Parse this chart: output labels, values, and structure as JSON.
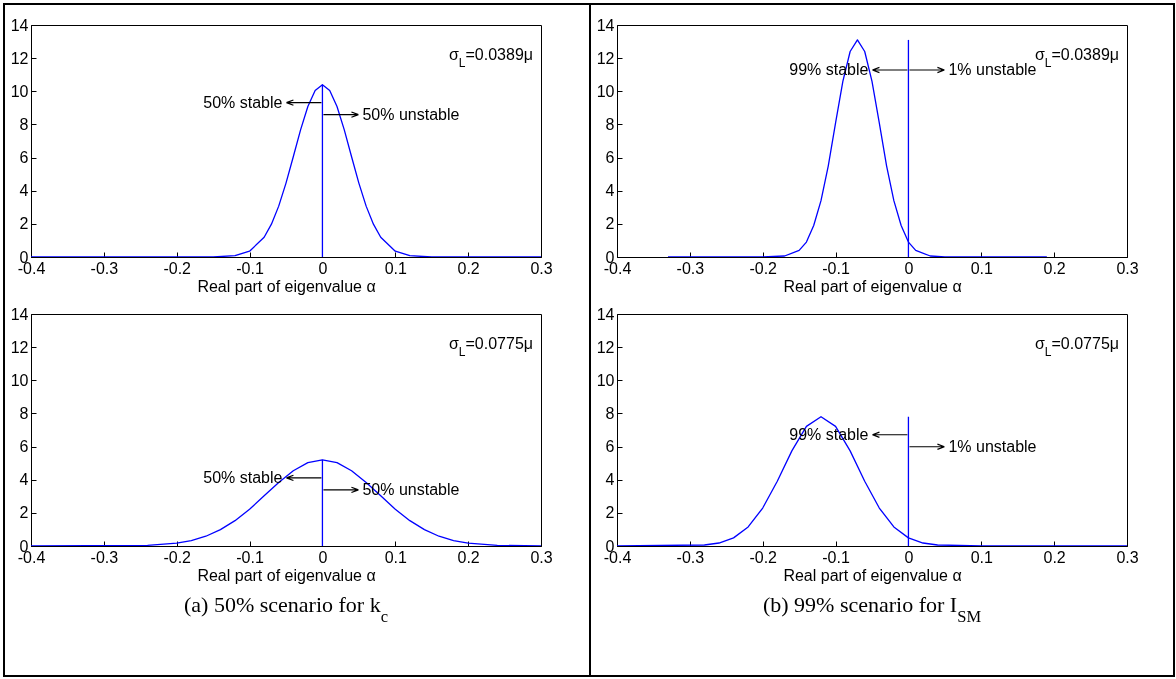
{
  "chart_data": [
    {
      "type": "line",
      "xlabel": "Real part of eigenvalue α",
      "xlim": [
        -0.4,
        0.3
      ],
      "ylim": [
        0,
        14
      ],
      "xticks": [
        -0.4,
        -0.3,
        -0.2,
        -0.1,
        0,
        0.1,
        0.2,
        0.3
      ],
      "yticks": [
        0,
        2,
        4,
        6,
        8,
        10,
        12,
        14
      ],
      "series": [
        {
          "color": "#0000ff",
          "x": [
            -0.4,
            -0.15,
            -0.12,
            -0.1,
            -0.08,
            -0.07,
            -0.06,
            -0.05,
            -0.04,
            -0.03,
            -0.02,
            -0.01,
            0,
            0.01,
            0.02,
            0.03,
            0.04,
            0.05,
            0.06,
            0.07,
            0.08,
            0.1,
            0.12,
            0.15,
            0.3
          ],
          "values": [
            0,
            0,
            0.08,
            0.35,
            1.19,
            1.98,
            3.07,
            4.46,
            6.05,
            7.67,
            9.08,
            10.05,
            10.4,
            10.05,
            9.08,
            7.67,
            6.05,
            4.46,
            3.07,
            1.98,
            1.19,
            0.35,
            0.08,
            0,
            0
          ]
        },
        {
          "color": "#0000ff",
          "x": [
            0,
            0
          ],
          "values": [
            0,
            10.4
          ]
        }
      ],
      "annotations": [
        "σ$_{L}$=0.0389μ",
        "50% stable",
        "50% unstable"
      ]
    },
    {
      "type": "line",
      "xlabel": "Real part of eigenvalue α",
      "xlim": [
        -0.4,
        0.3
      ],
      "ylim": [
        0,
        14
      ],
      "xticks": [
        -0.4,
        -0.3,
        -0.2,
        -0.1,
        0,
        0.1,
        0.2,
        0.3
      ],
      "yticks": [
        0,
        2,
        4,
        6,
        8,
        10,
        12,
        14
      ],
      "series": [
        {
          "color": "#0000ff",
          "x": [
            -0.33,
            -0.2,
            -0.17,
            -0.15,
            -0.14,
            -0.13,
            -0.12,
            -0.11,
            -0.1,
            -0.09,
            -0.08,
            -0.07,
            -0.06,
            -0.05,
            -0.04,
            -0.03,
            -0.02,
            -0.01,
            0,
            0.01,
            0.03,
            0.05,
            0.19
          ],
          "values": [
            0,
            0,
            0.06,
            0.4,
            0.9,
            1.9,
            3.4,
            5.5,
            8.1,
            10.6,
            12.4,
            13.1,
            12.4,
            10.6,
            8.1,
            5.5,
            3.4,
            1.9,
            0.9,
            0.4,
            0.06,
            0,
            0
          ]
        },
        {
          "color": "#0000ff",
          "x": [
            0,
            0
          ],
          "values": [
            0,
            13.1
          ]
        }
      ],
      "annotations": [
        "σ$_{L}$=0.0389μ",
        "99% stable",
        "1% unstable"
      ]
    },
    {
      "type": "line",
      "title": "(a) 50% scenario for k$_{c}$",
      "xlabel": "Real part of eigenvalue α",
      "xlim": [
        -0.4,
        0.3
      ],
      "ylim": [
        0,
        14
      ],
      "xticks": [
        -0.4,
        -0.3,
        -0.2,
        -0.1,
        0,
        0.1,
        0.2,
        0.3
      ],
      "yticks": [
        0,
        2,
        4,
        6,
        8,
        10,
        12,
        14
      ],
      "series": [
        {
          "color": "#0000ff",
          "x": [
            -0.4,
            -0.24,
            -0.2,
            -0.18,
            -0.16,
            -0.14,
            -0.12,
            -0.1,
            -0.08,
            -0.06,
            -0.04,
            -0.02,
            0,
            0.02,
            0.04,
            0.06,
            0.08,
            0.1,
            0.12,
            0.14,
            0.16,
            0.18,
            0.2,
            0.24,
            0.3
          ],
          "values": [
            0,
            0.04,
            0.17,
            0.33,
            0.59,
            0.99,
            1.53,
            2.22,
            3.03,
            3.83,
            4.54,
            5.03,
            5.2,
            5.03,
            4.54,
            3.83,
            3.03,
            2.22,
            1.53,
            0.99,
            0.59,
            0.33,
            0.17,
            0.04,
            0
          ]
        },
        {
          "color": "#0000ff",
          "x": [
            0,
            0
          ],
          "values": [
            0,
            5.2
          ]
        }
      ],
      "annotations": [
        "σ$_{L}$=0.0775μ",
        "50% stable",
        "50% unstable"
      ]
    },
    {
      "type": "line",
      "title": "(b) 99% scenario for I$_{SM}$",
      "xlabel": "Real part of eigenvalue α",
      "xlim": [
        -0.4,
        0.3
      ],
      "ylim": [
        0,
        14
      ],
      "xticks": [
        -0.4,
        -0.3,
        -0.2,
        -0.1,
        0,
        0.1,
        0.2,
        0.3
      ],
      "yticks": [
        0,
        2,
        4,
        6,
        8,
        10,
        12,
        14
      ],
      "series": [
        {
          "color": "#0000ff",
          "x": [
            -0.4,
            -0.28,
            -0.26,
            -0.24,
            -0.22,
            -0.2,
            -0.18,
            -0.16,
            -0.14,
            -0.12,
            -0.1,
            -0.08,
            -0.06,
            -0.04,
            -0.02,
            0,
            0.02,
            0.04,
            0.1,
            0.3
          ],
          "values": [
            0,
            0.06,
            0.18,
            0.49,
            1.15,
            2.29,
            3.91,
            5.74,
            7.22,
            7.8,
            7.22,
            5.74,
            3.91,
            2.29,
            1.15,
            0.49,
            0.18,
            0.06,
            0,
            0
          ]
        },
        {
          "color": "#0000ff",
          "x": [
            0,
            0
          ],
          "values": [
            0,
            7.8
          ]
        }
      ],
      "annotations": [
        "σ$_{L}$=0.0775μ",
        "99% stable",
        "1% unstable"
      ]
    }
  ]
}
